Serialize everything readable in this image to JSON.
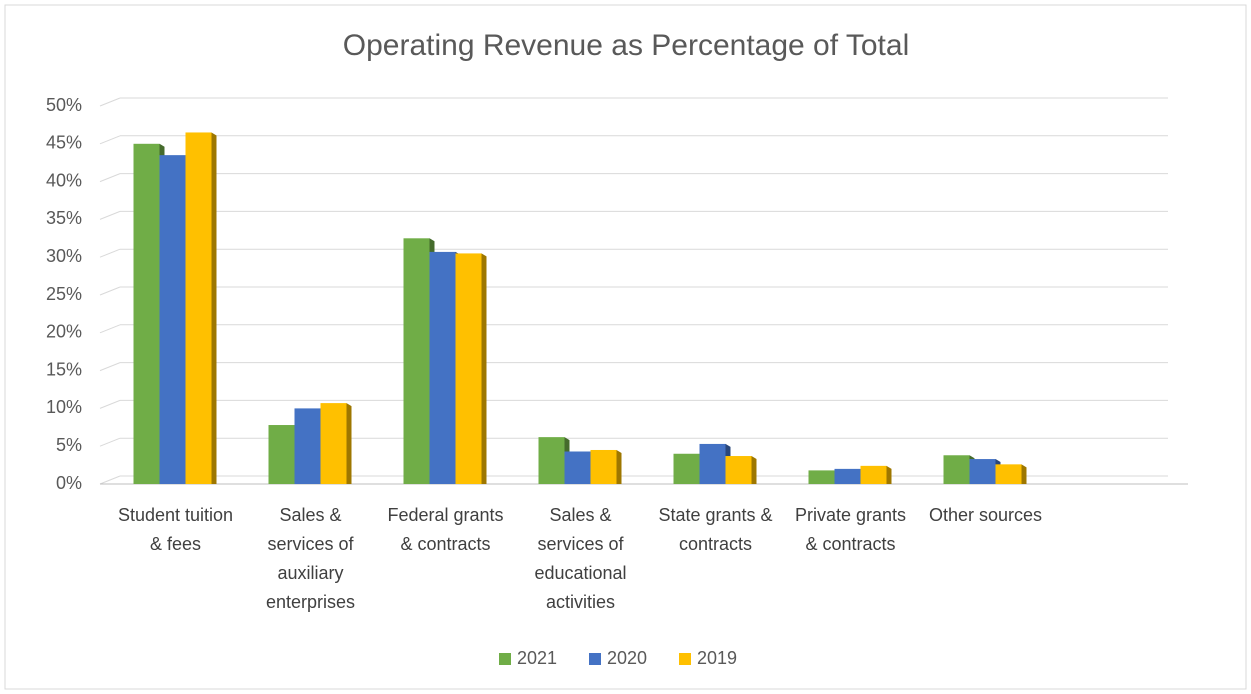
{
  "chart_data": {
    "type": "bar",
    "title": "Operating Revenue as Percentage of Total",
    "categories": [
      "Student tuition & fees",
      "Sales & services of auxiliary enterprises",
      "Federal grants & contracts",
      "Sales & services of educational activities",
      "State grants & contracts",
      "Private grants & contracts",
      "Other sources",
      null
    ],
    "series": [
      {
        "name": "2021",
        "color": "#70ad47",
        "values": [
          45,
          7.8,
          32.5,
          6.2,
          4,
          1.8,
          3.8,
          null
        ]
      },
      {
        "name": "2020",
        "color": "#4472c4",
        "values": [
          43.5,
          10,
          30.7,
          4.3,
          5.3,
          2,
          3.3,
          null
        ]
      },
      {
        "name": "2019",
        "color": "#ffc000",
        "values": [
          46.5,
          10.7,
          30.5,
          4.5,
          3.7,
          2.4,
          2.6,
          null
        ]
      }
    ],
    "ylim": [
      0,
      50
    ],
    "yticks": [
      {
        "value": 0,
        "label": "0%"
      },
      {
        "value": 5,
        "label": "5%"
      },
      {
        "value": 10,
        "label": "10%"
      },
      {
        "value": 15,
        "label": "15%"
      },
      {
        "value": 20,
        "label": "20%"
      },
      {
        "value": 25,
        "label": "25%"
      },
      {
        "value": 30,
        "label": "30%"
      },
      {
        "value": 35,
        "label": "35%"
      },
      {
        "value": 40,
        "label": "40%"
      },
      {
        "value": 45,
        "label": "45%"
      },
      {
        "value": 50,
        "label": "50%"
      }
    ],
    "grid": true,
    "legend": "bottom"
  }
}
